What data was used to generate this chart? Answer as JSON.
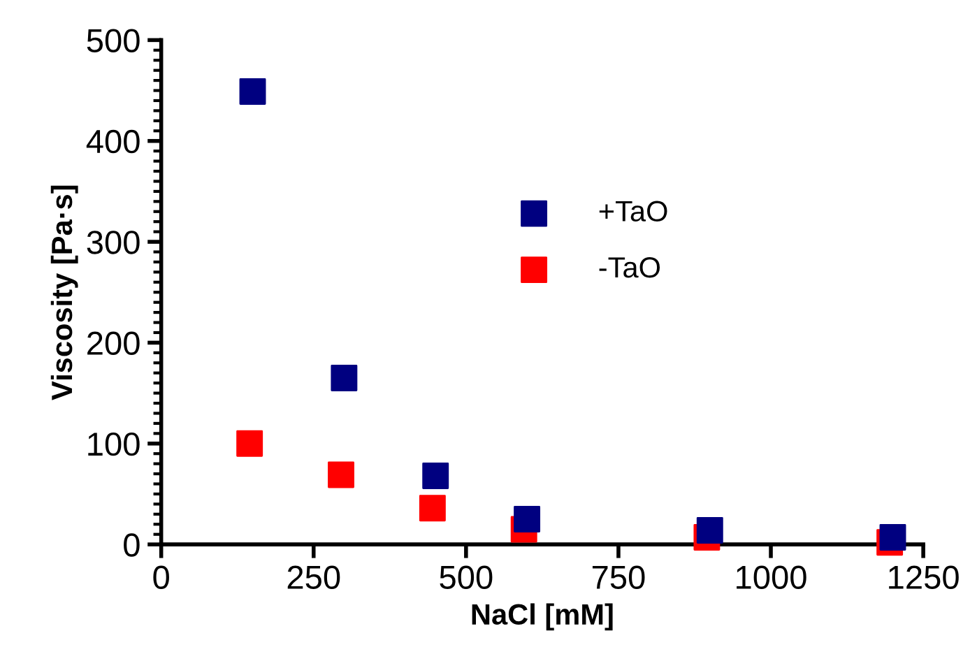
{
  "chart_data": {
    "type": "scatter",
    "xlabel": "NaCl [mM]",
    "ylabel": "Viscosity [Pa·s]",
    "xlim": [
      0,
      1250
    ],
    "xticks": [
      0,
      250,
      500,
      750,
      1000,
      1250
    ],
    "ylim": [
      0,
      500
    ],
    "yticks": [
      0,
      100,
      200,
      300,
      400,
      500
    ],
    "marker": "square",
    "grid": false,
    "legend": "right",
    "series": [
      {
        "name": "+TaO",
        "color": "#000080",
        "x": [
          150,
          300,
          450,
          600,
          900,
          1200
        ],
        "values": [
          449,
          165,
          68,
          25,
          14,
          7
        ]
      },
      {
        "name": "-TaO",
        "color": "#ff0000",
        "x": [
          145,
          295,
          445,
          595,
          895,
          1195
        ],
        "values": [
          100,
          69,
          36,
          15,
          7,
          2
        ]
      }
    ]
  }
}
